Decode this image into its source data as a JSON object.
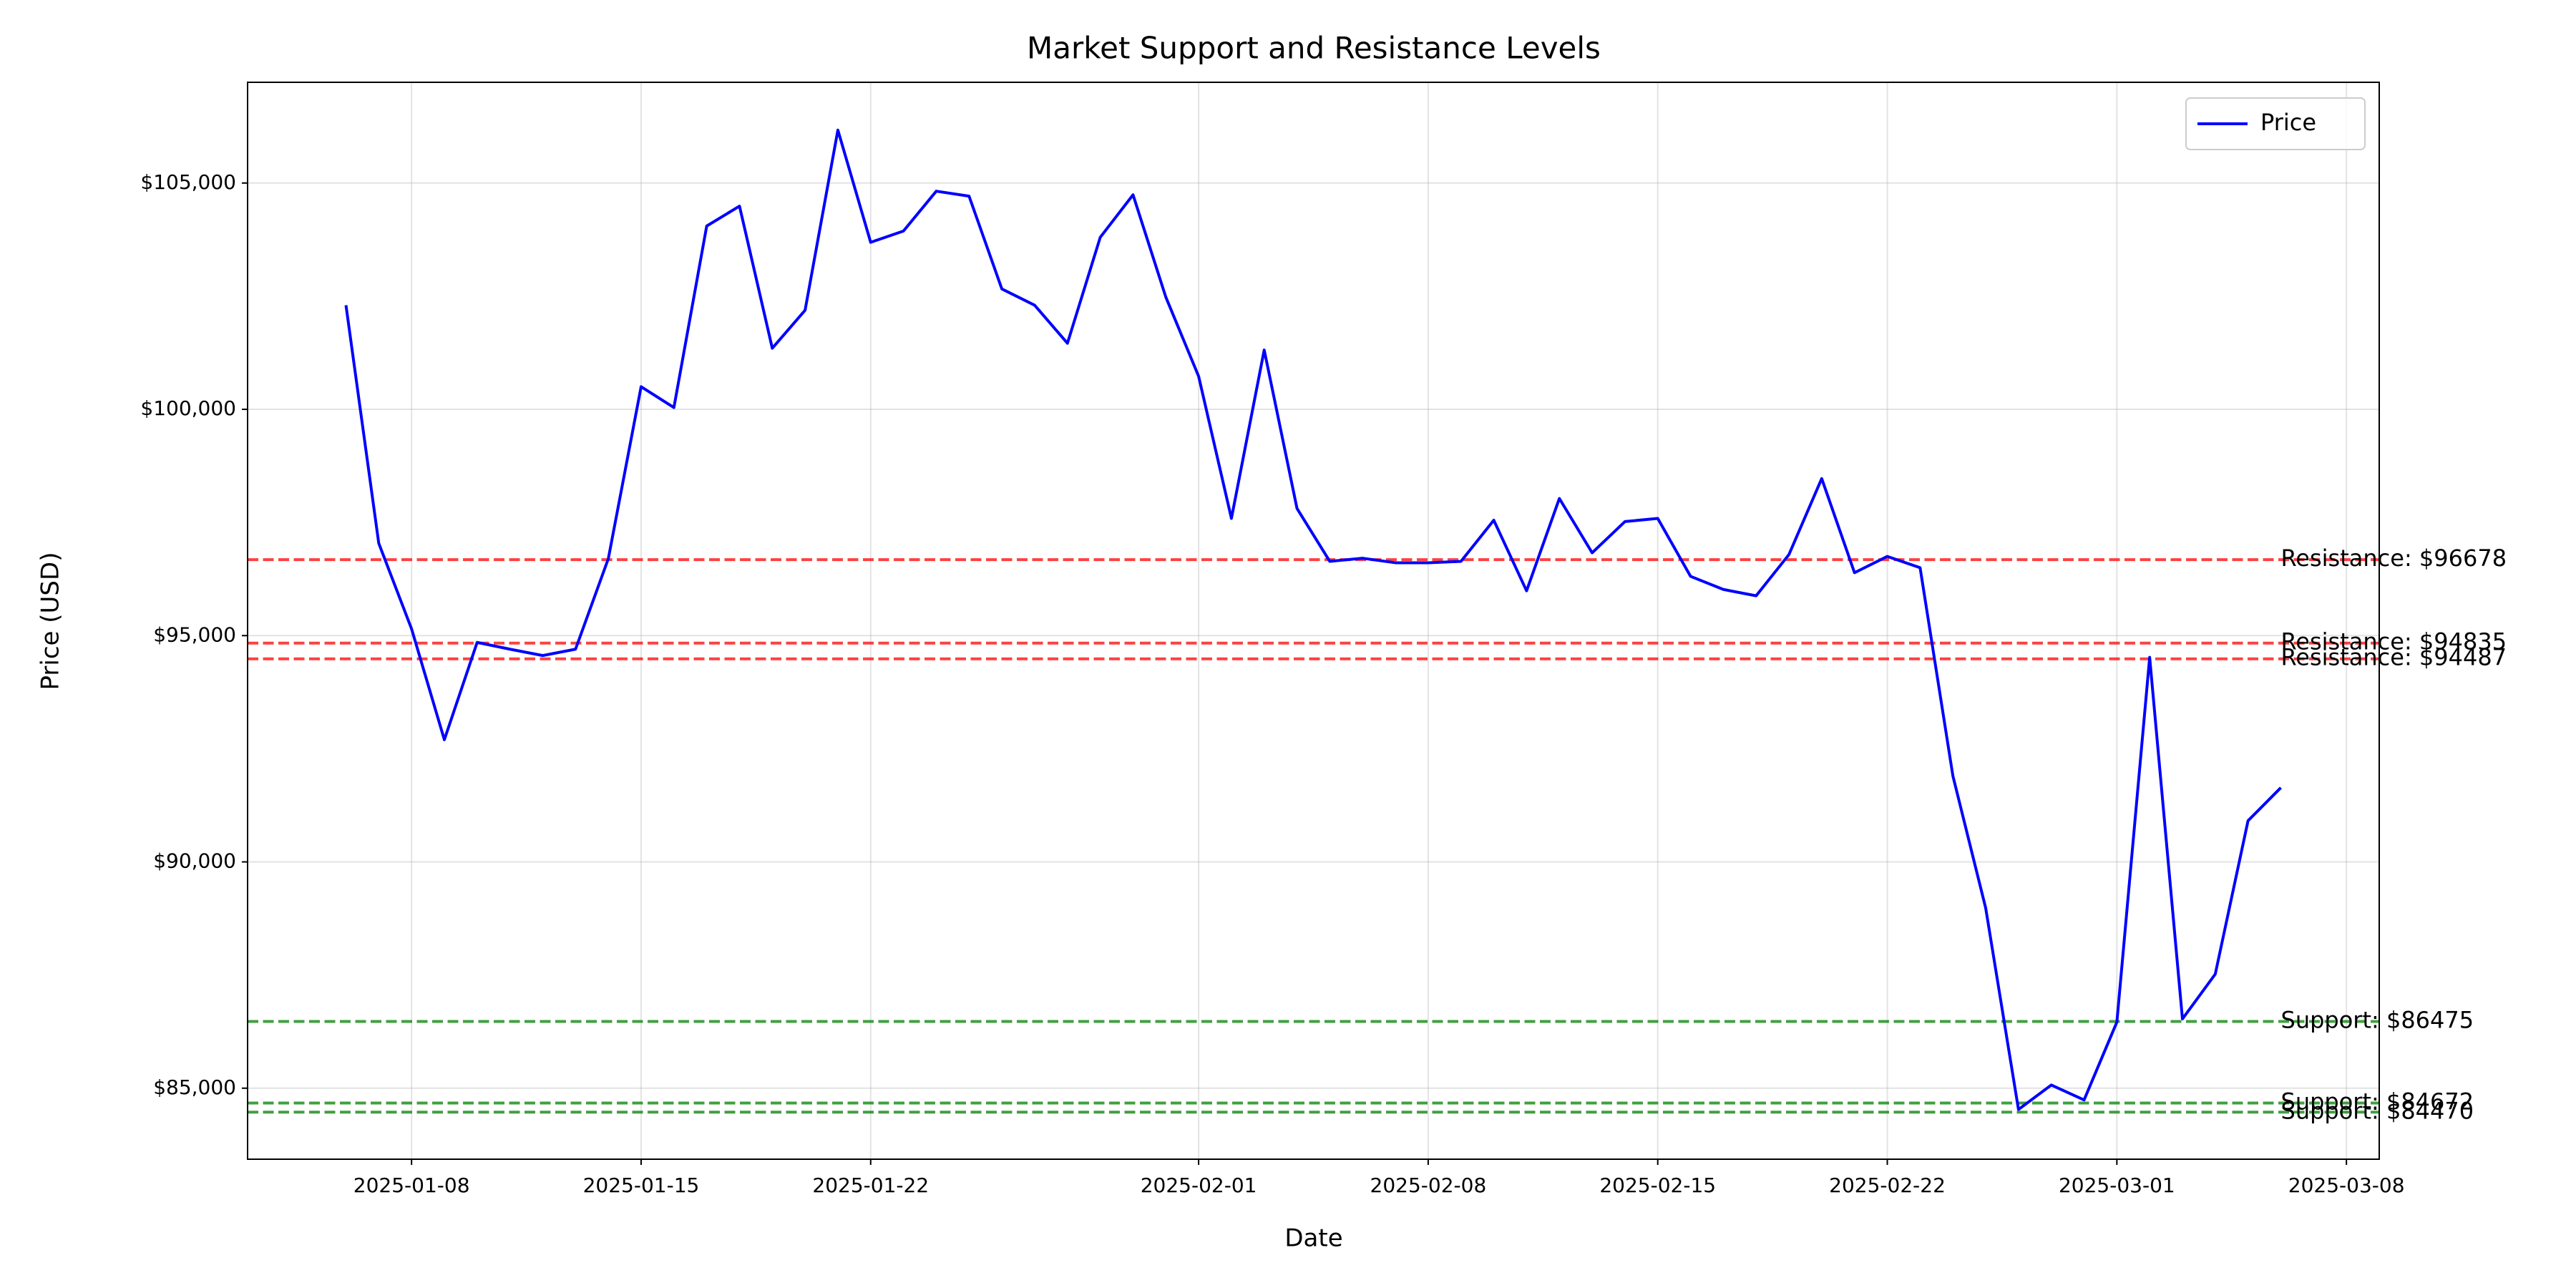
{
  "chart_data": {
    "type": "line",
    "title": "Market Support and Resistance Levels",
    "x_label": "Date",
    "y_label": "Price (USD)",
    "x": [
      "2025-01-06",
      "2025-01-07",
      "2025-01-08",
      "2025-01-09",
      "2025-01-10",
      "2025-01-11",
      "2025-01-12",
      "2025-01-13",
      "2025-01-14",
      "2025-01-15",
      "2025-01-16",
      "2025-01-17",
      "2025-01-18",
      "2025-01-19",
      "2025-01-20",
      "2025-01-21",
      "2025-01-22",
      "2025-01-23",
      "2025-01-24",
      "2025-01-25",
      "2025-01-26",
      "2025-01-27",
      "2025-01-28",
      "2025-01-29",
      "2025-01-30",
      "2025-01-31",
      "2025-02-01",
      "2025-02-02",
      "2025-02-03",
      "2025-02-04",
      "2025-02-05",
      "2025-02-06",
      "2025-02-07",
      "2025-02-08",
      "2025-02-09",
      "2025-02-10",
      "2025-02-11",
      "2025-02-12",
      "2025-02-13",
      "2025-02-14",
      "2025-02-15",
      "2025-02-16",
      "2025-02-17",
      "2025-02-18",
      "2025-02-19",
      "2025-02-20",
      "2025-02-21",
      "2025-02-22",
      "2025-02-23",
      "2025-02-24",
      "2025-02-25",
      "2025-02-26",
      "2025-02-27",
      "2025-02-28",
      "2025-03-01",
      "2025-03-02",
      "2025-03-03",
      "2025-03-04",
      "2025-03-05",
      "2025-03-06"
    ],
    "series": [
      {
        "name": "Price",
        "color": "#0000ff",
        "values": [
          102300,
          97040,
          95150,
          92700,
          94850,
          94700,
          94560,
          94700,
          96700,
          100500,
          100040,
          104050,
          104490,
          101350,
          102190,
          106170,
          103690,
          103940,
          104820,
          104710,
          102660,
          102300,
          101460,
          103800,
          104740,
          102480,
          100730,
          97590,
          101310,
          97810,
          96640,
          96710,
          96610,
          96610,
          96640,
          97550,
          95990,
          98030,
          96830,
          97520,
          97590,
          96310,
          96020,
          95880,
          96790,
          98470,
          96390,
          96750,
          96500,
          91900,
          88980,
          84530,
          85070,
          84740,
          86460,
          94520,
          86530,
          87520,
          90910,
          91640
        ]
      }
    ],
    "hlines": [
      {
        "value": 96678,
        "label": "Resistance: $96678",
        "color": "#ff0000"
      },
      {
        "value": 94835,
        "label": "Resistance: $94835",
        "color": "#ff0000"
      },
      {
        "value": 94487,
        "label": "Resistance: $94487",
        "color": "#ff0000"
      },
      {
        "value": 86475,
        "label": "Support: $86475",
        "color": "#008000"
      },
      {
        "value": 84672,
        "label": "Support: $84672",
        "color": "#008000"
      },
      {
        "value": 84470,
        "label": "Support: $84470",
        "color": "#008000"
      }
    ],
    "xlim": [
      "2025-01-03",
      "2025-03-09"
    ],
    "xticks": [
      "2025-01-08",
      "2025-01-15",
      "2025-01-22",
      "2025-02-01",
      "2025-02-08",
      "2025-02-15",
      "2025-02-22",
      "2025-03-01",
      "2025-03-08"
    ],
    "ylim": [
      83431,
      107226
    ],
    "yticks": [
      {
        "value": 85000,
        "label": "$85,000"
      },
      {
        "value": 90000,
        "label": "$90,000"
      },
      {
        "value": 95000,
        "label": "$95,000"
      },
      {
        "value": 100000,
        "label": "$100,000"
      },
      {
        "value": 105000,
        "label": "$105,000"
      }
    ],
    "grid": true,
    "legend": "upper right"
  }
}
